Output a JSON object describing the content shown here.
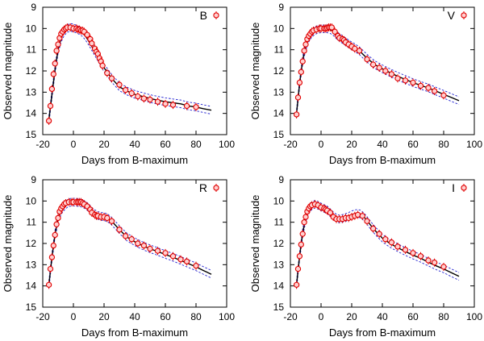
{
  "chart_data": [
    {
      "type": "scatter",
      "legend": "B",
      "legend_placement": "top-right",
      "xlabel": "Days from B-maximum",
      "ylabel": "Observed magnitude",
      "xlim": [
        -20,
        100
      ],
      "ylim": [
        15,
        9
      ],
      "y_inverted": true,
      "xticks": [
        "-20",
        "0",
        "20",
        "40",
        "60",
        "80",
        "100"
      ],
      "yticks": [
        "9",
        "10",
        "11",
        "12",
        "13",
        "14",
        "15"
      ],
      "observations": {
        "x": [
          -16,
          -15,
          -14,
          -13,
          -12,
          -11,
          -10,
          -9,
          -8,
          -7,
          -6,
          -5,
          -4,
          -2,
          0,
          2,
          3,
          4,
          5,
          6,
          7,
          9,
          11,
          12,
          14,
          15,
          16,
          17,
          18,
          19,
          22,
          25,
          30,
          34,
          38,
          42,
          46,
          50,
          55,
          60,
          65,
          74,
          80
        ],
        "y": [
          14.35,
          13.65,
          12.85,
          12.15,
          11.65,
          11.05,
          10.75,
          10.45,
          10.25,
          10.15,
          10.05,
          10.0,
          9.95,
          9.95,
          10.0,
          10.0,
          10.05,
          10.05,
          10.1,
          10.1,
          10.15,
          10.3,
          10.5,
          10.7,
          10.95,
          11.1,
          11.2,
          11.4,
          11.55,
          11.75,
          12.1,
          12.35,
          12.65,
          12.9,
          13.05,
          13.2,
          13.3,
          13.35,
          13.45,
          13.55,
          13.6,
          13.65,
          13.7
        ]
      },
      "model": {
        "x": [
          -16,
          -14,
          -12,
          -10,
          -8,
          -6,
          -4,
          -2,
          0,
          2,
          4,
          6,
          8,
          10,
          12,
          14,
          16,
          18,
          20,
          22,
          25,
          30,
          35,
          40,
          45,
          50,
          55,
          60,
          65,
          70,
          75,
          80,
          85,
          90
        ],
        "y": [
          14.3,
          13.1,
          11.95,
          11.0,
          10.45,
          10.15,
          10.0,
          9.95,
          9.97,
          10.03,
          10.1,
          10.2,
          10.38,
          10.6,
          10.85,
          11.1,
          11.35,
          11.6,
          11.85,
          12.05,
          12.35,
          12.75,
          12.95,
          13.1,
          13.2,
          13.3,
          13.38,
          13.45,
          13.5,
          13.55,
          13.65,
          13.7,
          13.78,
          13.85
        ]
      }
    },
    {
      "type": "scatter",
      "legend": "V",
      "legend_placement": "top-right",
      "xlabel": "Days from B-maximum",
      "ylabel": "Observed magnitude",
      "xlim": [
        -20,
        100
      ],
      "ylim": [
        15,
        9
      ],
      "y_inverted": true,
      "xticks": [
        "-20",
        "0",
        "20",
        "40",
        "60",
        "80",
        "100"
      ],
      "yticks": [
        "9",
        "10",
        "11",
        "12",
        "13",
        "14",
        "15"
      ],
      "observations": {
        "x": [
          -16,
          -15,
          -14,
          -13,
          -12,
          -11,
          -10,
          -9,
          -8,
          -7,
          -6,
          -5,
          -3,
          -1,
          0,
          2,
          3,
          4,
          5,
          6,
          7,
          9,
          11,
          12,
          14,
          15,
          16,
          18,
          20,
          22,
          25,
          30,
          34,
          38,
          42,
          46,
          50,
          55,
          60,
          65,
          70,
          74,
          80
        ],
        "y": [
          14.05,
          13.25,
          12.55,
          12.05,
          11.55,
          11.05,
          10.75,
          10.5,
          10.35,
          10.25,
          10.15,
          10.1,
          10.05,
          10.0,
          10.0,
          10.0,
          10.0,
          9.98,
          9.95,
          9.95,
          9.95,
          10.15,
          10.35,
          10.45,
          10.5,
          10.55,
          10.65,
          10.75,
          10.85,
          10.95,
          11.05,
          11.45,
          11.7,
          11.85,
          12.0,
          12.15,
          12.35,
          12.45,
          12.55,
          12.7,
          12.8,
          12.95,
          13.15
        ]
      },
      "model": {
        "x": [
          -16,
          -14,
          -12,
          -10,
          -8,
          -6,
          -4,
          -2,
          0,
          2,
          4,
          6,
          8,
          10,
          12,
          14,
          16,
          18,
          20,
          22,
          25,
          30,
          35,
          40,
          45,
          50,
          55,
          60,
          65,
          70,
          75,
          80,
          85,
          90
        ],
        "y": [
          14.0,
          12.6,
          11.5,
          10.85,
          10.45,
          10.22,
          10.1,
          10.04,
          10.02,
          10.02,
          10.02,
          10.05,
          10.15,
          10.3,
          10.42,
          10.52,
          10.62,
          10.72,
          10.82,
          10.9,
          11.05,
          11.4,
          11.7,
          11.9,
          12.08,
          12.25,
          12.4,
          12.55,
          12.68,
          12.8,
          12.95,
          13.1,
          13.25,
          13.4
        ]
      }
    },
    {
      "type": "scatter",
      "legend": "R",
      "legend_placement": "top-right",
      "xlabel": "Days from B-maximum",
      "ylabel": "Observed magnitude",
      "xlim": [
        -20,
        100
      ],
      "ylim": [
        15,
        9
      ],
      "y_inverted": true,
      "xticks": [
        "-20",
        "0",
        "20",
        "40",
        "60",
        "80",
        "100"
      ],
      "yticks": [
        "9",
        "10",
        "11",
        "12",
        "13",
        "14",
        "15"
      ],
      "observations": {
        "x": [
          -16,
          -15,
          -14,
          -13,
          -12,
          -11,
          -10,
          -9,
          -8,
          -7,
          -6,
          -5,
          -3,
          -1,
          0,
          2,
          3,
          4,
          5,
          6,
          7,
          9,
          11,
          12,
          14,
          15,
          16,
          18,
          20,
          22,
          25,
          30,
          34,
          38,
          42,
          46,
          50,
          55,
          60,
          65,
          70,
          74,
          80
        ],
        "y": [
          13.95,
          13.2,
          12.65,
          12.1,
          11.6,
          11.1,
          10.8,
          10.5,
          10.35,
          10.25,
          10.15,
          10.1,
          10.05,
          10.05,
          10.05,
          10.05,
          10.05,
          10.05,
          10.05,
          10.1,
          10.15,
          10.25,
          10.4,
          10.55,
          10.65,
          10.7,
          10.7,
          10.75,
          10.75,
          10.8,
          10.95,
          11.35,
          11.65,
          11.8,
          12.0,
          12.1,
          12.25,
          12.35,
          12.45,
          12.6,
          12.75,
          12.85,
          13.05
        ]
      },
      "model": {
        "x": [
          -16,
          -14,
          -12,
          -10,
          -8,
          -6,
          -4,
          -2,
          0,
          2,
          4,
          6,
          8,
          10,
          12,
          14,
          16,
          18,
          20,
          22,
          25,
          30,
          35,
          40,
          45,
          50,
          55,
          60,
          65,
          70,
          75,
          80,
          85,
          90
        ],
        "y": [
          13.95,
          12.65,
          11.55,
          10.85,
          10.45,
          10.25,
          10.12,
          10.06,
          10.05,
          10.06,
          10.08,
          10.12,
          10.2,
          10.32,
          10.48,
          10.6,
          10.68,
          10.72,
          10.74,
          10.78,
          10.95,
          11.35,
          11.7,
          11.92,
          12.1,
          12.25,
          12.38,
          12.52,
          12.65,
          12.8,
          12.95,
          13.1,
          13.28,
          13.45
        ]
      }
    },
    {
      "type": "scatter",
      "legend": "I",
      "legend_placement": "top-right",
      "xlabel": "Days from B-maximum",
      "ylabel": "Observed magnitude",
      "xlim": [
        -20,
        100
      ],
      "ylim": [
        15,
        9
      ],
      "y_inverted": true,
      "xticks": [
        "-20",
        "0",
        "20",
        "40",
        "60",
        "80",
        "100"
      ],
      "yticks": [
        "9",
        "10",
        "11",
        "12",
        "13",
        "14",
        "15"
      ],
      "observations": {
        "x": [
          -16,
          -15,
          -14,
          -13,
          -12,
          -11,
          -10,
          -9,
          -8,
          -7,
          -6,
          -4,
          -2,
          0,
          2,
          3,
          4,
          6,
          8,
          10,
          12,
          14,
          16,
          18,
          20,
          22,
          24,
          27,
          30,
          34,
          38,
          42,
          46,
          50,
          55,
          60,
          65,
          70,
          74,
          80
        ],
        "y": [
          13.95,
          13.2,
          12.6,
          12.05,
          11.55,
          11.0,
          10.75,
          10.5,
          10.35,
          10.25,
          10.2,
          10.15,
          10.2,
          10.3,
          10.35,
          10.4,
          10.45,
          10.55,
          10.75,
          10.85,
          10.85,
          10.85,
          10.8,
          10.8,
          10.75,
          10.7,
          10.65,
          10.7,
          10.95,
          11.3,
          11.55,
          11.8,
          11.95,
          12.15,
          12.3,
          12.45,
          12.6,
          12.8,
          12.9,
          13.1
        ]
      },
      "model": {
        "x": [
          -16,
          -14,
          -12,
          -10,
          -8,
          -6,
          -4,
          -2,
          0,
          2,
          4,
          6,
          8,
          10,
          12,
          14,
          16,
          18,
          20,
          22,
          24,
          26,
          28,
          30,
          33,
          36,
          40,
          45,
          50,
          55,
          60,
          65,
          70,
          75,
          80,
          85,
          90
        ],
        "y": [
          13.95,
          12.6,
          11.5,
          10.8,
          10.4,
          10.22,
          10.15,
          10.2,
          10.28,
          10.35,
          10.42,
          10.55,
          10.7,
          10.8,
          10.85,
          10.82,
          10.78,
          10.72,
          10.65,
          10.6,
          10.58,
          10.62,
          10.75,
          10.92,
          11.2,
          11.45,
          11.75,
          12.0,
          12.2,
          12.38,
          12.55,
          12.7,
          12.88,
          13.05,
          13.2,
          13.38,
          13.55
        ]
      }
    }
  ]
}
